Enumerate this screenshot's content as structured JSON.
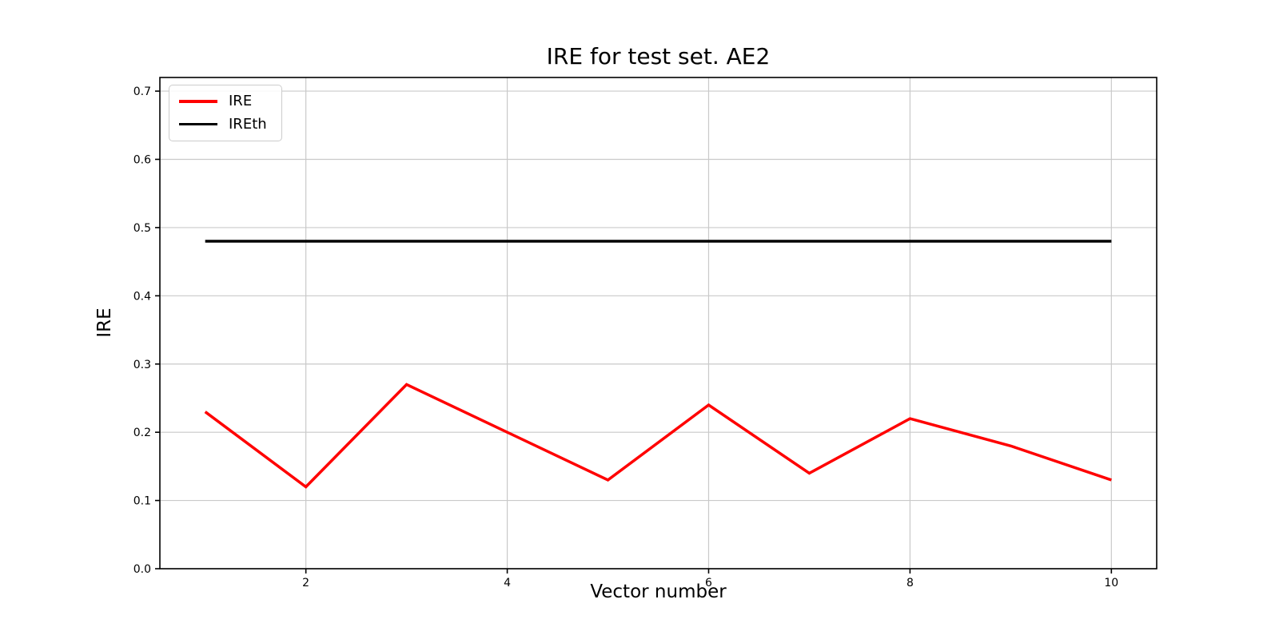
{
  "chart_data": {
    "type": "line",
    "title": "IRE for test set. AE2",
    "xlabel": "Vector number",
    "ylabel": "IRE",
    "x": [
      1,
      2,
      3,
      4,
      5,
      6,
      7,
      8,
      9,
      10
    ],
    "series": [
      {
        "name": "IRE",
        "color": "#ff0000",
        "values": [
          0.23,
          0.12,
          0.27,
          0.2,
          0.13,
          0.24,
          0.14,
          0.22,
          0.18,
          0.13
        ]
      },
      {
        "name": "IREth",
        "color": "#000000",
        "values": [
          0.48,
          0.48,
          0.48,
          0.48,
          0.48,
          0.48,
          0.48,
          0.48,
          0.48,
          0.48
        ]
      }
    ],
    "xtick_labels": [
      "2",
      "4",
      "6",
      "8",
      "10"
    ],
    "xtick_values": [
      2,
      4,
      6,
      8,
      10
    ],
    "ytick_labels": [
      "0.0",
      "0.1",
      "0.2",
      "0.3",
      "0.4",
      "0.5",
      "0.6",
      "0.7"
    ],
    "ytick_values": [
      0.0,
      0.1,
      0.2,
      0.3,
      0.4,
      0.5,
      0.6,
      0.7
    ],
    "xlim": [
      0.55,
      10.45
    ],
    "ylim": [
      0.0,
      0.72
    ],
    "grid": true,
    "legend_position": "upper-left",
    "colors": {
      "grid": "#c9c9c9",
      "spine": "#000000",
      "background": "#ffffff",
      "tick_text": "#000000"
    }
  }
}
